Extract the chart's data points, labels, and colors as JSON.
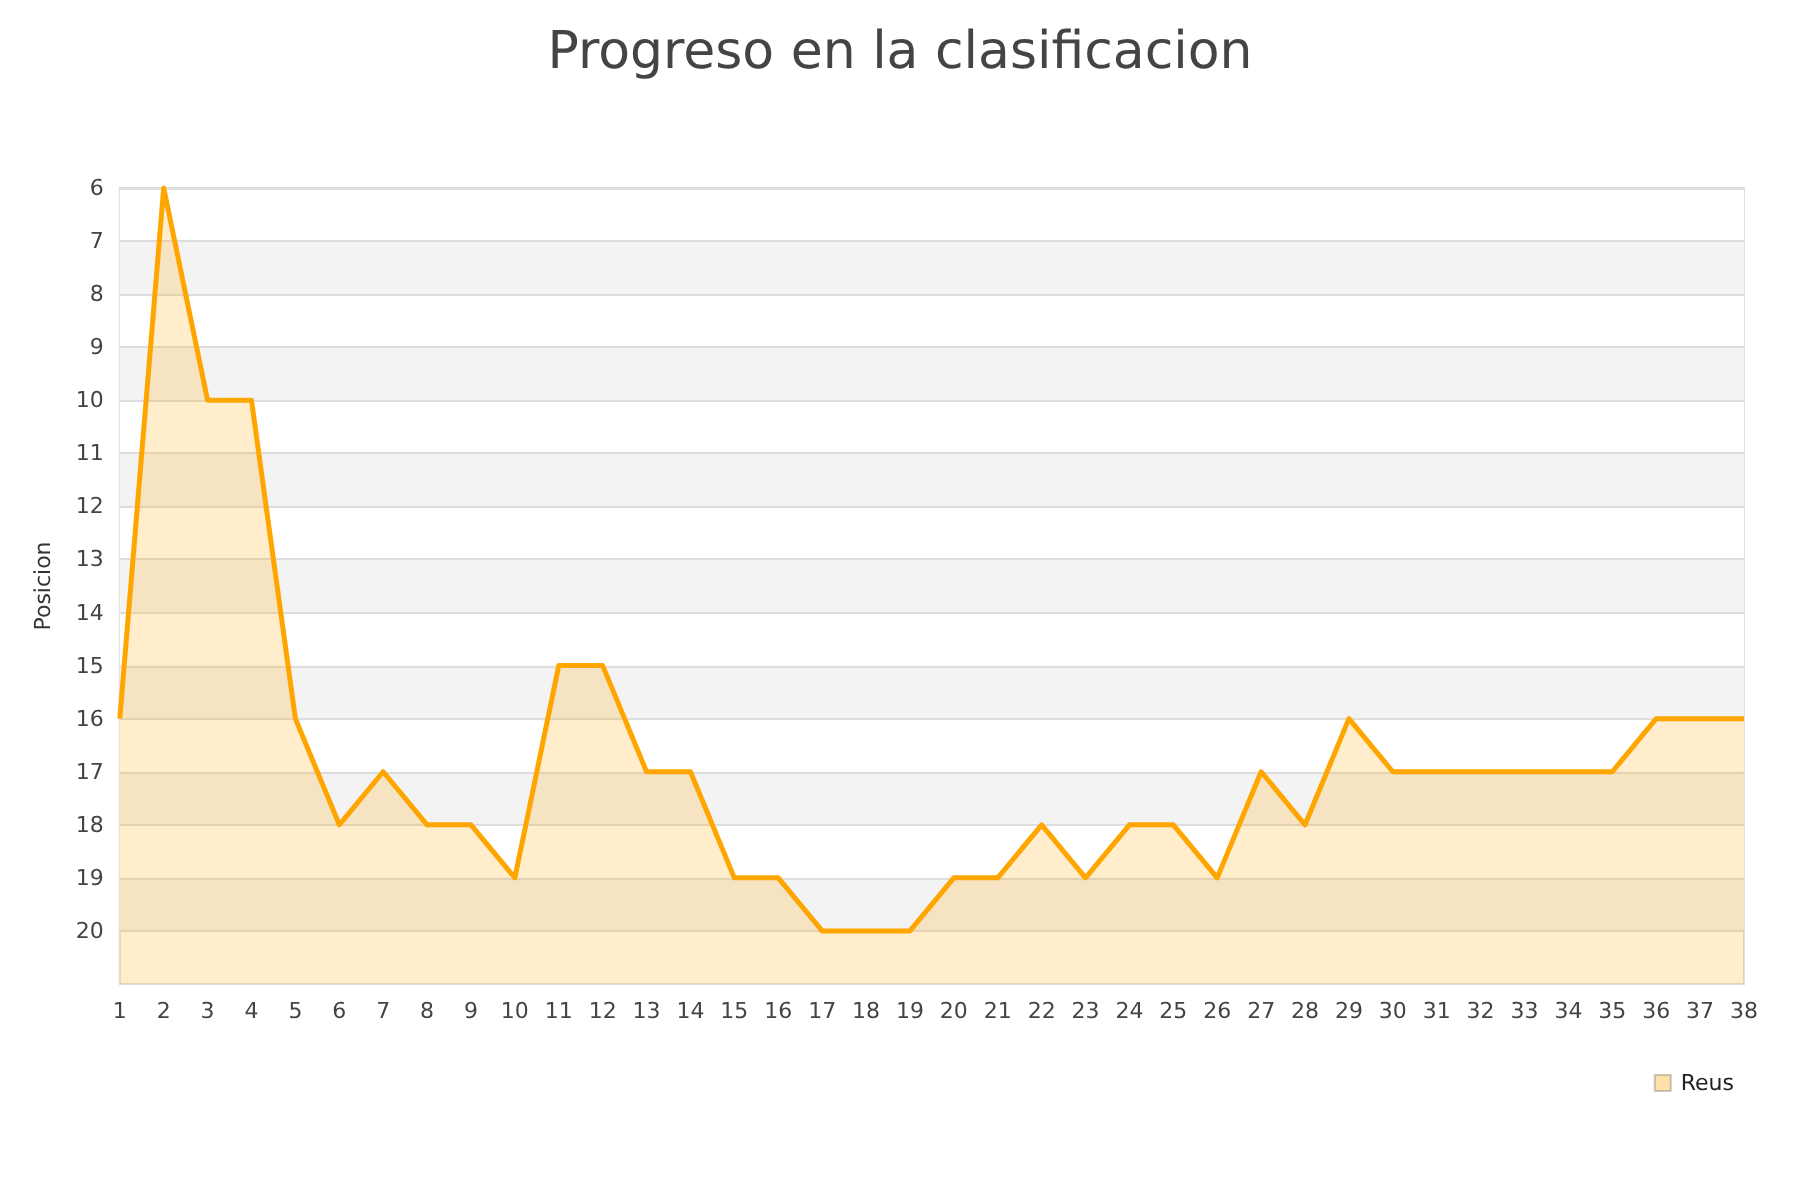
{
  "chart_data": {
    "type": "area",
    "title": "Progreso en la clasificacion",
    "ylabel": "Posicion",
    "x": [
      1,
      2,
      3,
      4,
      5,
      6,
      7,
      8,
      9,
      10,
      11,
      12,
      13,
      14,
      15,
      16,
      17,
      18,
      19,
      20,
      21,
      22,
      23,
      24,
      25,
      26,
      27,
      28,
      29,
      30,
      31,
      32,
      33,
      34,
      35,
      36,
      37,
      38
    ],
    "series": [
      {
        "name": "Reus",
        "color": "#ffa500",
        "values": [
          16,
          6,
          10,
          10,
          16,
          18,
          17,
          18,
          18,
          19,
          15,
          15,
          17,
          17,
          19,
          19,
          20,
          20,
          20,
          19,
          19,
          18,
          19,
          18,
          18,
          19,
          17,
          18,
          16,
          17,
          17,
          17,
          17,
          17,
          17,
          16,
          16,
          16
        ]
      }
    ],
    "xlim": [
      1,
      38
    ],
    "xticks": [
      1,
      2,
      3,
      4,
      5,
      6,
      7,
      8,
      9,
      10,
      11,
      12,
      13,
      14,
      15,
      16,
      17,
      18,
      19,
      20,
      21,
      22,
      23,
      24,
      25,
      26,
      27,
      28,
      29,
      30,
      31,
      32,
      33,
      34,
      35,
      36,
      37,
      38
    ],
    "ylim": [
      21,
      6
    ],
    "yticks": [
      6,
      7,
      8,
      9,
      10,
      11,
      12,
      13,
      14,
      15,
      16,
      17,
      18,
      19,
      20
    ],
    "grid": "y",
    "legend": "bottom right",
    "marker": "none",
    "line_style": "solid"
  }
}
